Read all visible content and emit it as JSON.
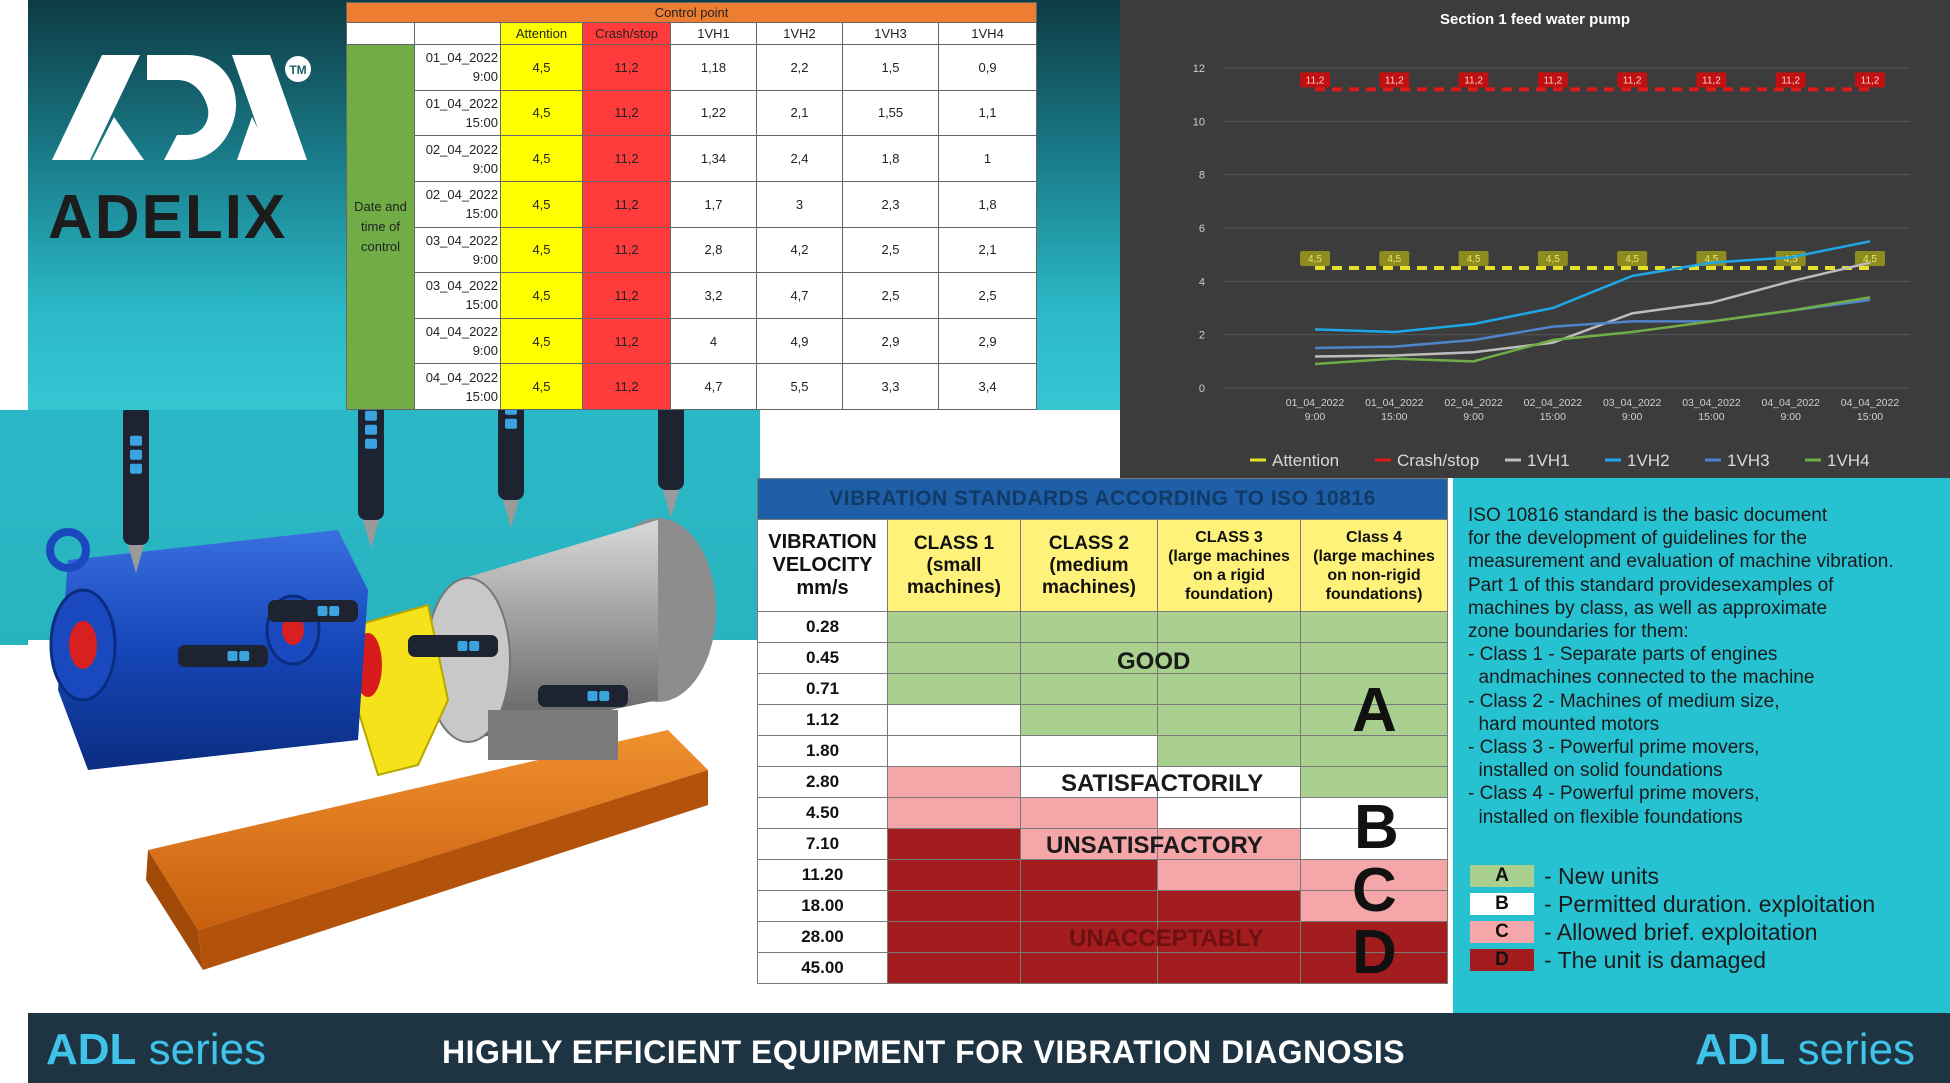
{
  "brand": {
    "name": "ADELIX",
    "logo_mark": "ADL",
    "trademark": "TM",
    "series_bold": "ADL",
    "series_light": "series",
    "tagline": "HIGHLY EFFICIENT EQUIPMENT FOR VIBRATION DIAGNOSIS"
  },
  "control_table": {
    "title": "Control point",
    "headers": [
      "Attention",
      "Crash/stop",
      "1VH1",
      "1VH2",
      "1VH3",
      "1VH4"
    ],
    "row_group_label": [
      "Date and",
      "time of",
      "control"
    ],
    "rows": [
      {
        "date": "01_04_2022",
        "time": "9:00",
        "attention": "4,5",
        "crash": "11,2",
        "vh1": "1,18",
        "vh2": "2,2",
        "vh3": "1,5",
        "vh4": "0,9"
      },
      {
        "date": "01_04_2022",
        "time": "15:00",
        "attention": "4,5",
        "crash": "11,2",
        "vh1": "1,22",
        "vh2": "2,1",
        "vh3": "1,55",
        "vh4": "1,1"
      },
      {
        "date": "02_04_2022",
        "time": "9:00",
        "attention": "4,5",
        "crash": "11,2",
        "vh1": "1,34",
        "vh2": "2,4",
        "vh3": "1,8",
        "vh4": "1"
      },
      {
        "date": "02_04_2022",
        "time": "15:00",
        "attention": "4,5",
        "crash": "11,2",
        "vh1": "1,7",
        "vh2": "3",
        "vh3": "2,3",
        "vh4": "1,8"
      },
      {
        "date": "03_04_2022",
        "time": "9:00",
        "attention": "4,5",
        "crash": "11,2",
        "vh1": "2,8",
        "vh2": "4,2",
        "vh3": "2,5",
        "vh4": "2,1"
      },
      {
        "date": "03_04_2022",
        "time": "15:00",
        "attention": "4,5",
        "crash": "11,2",
        "vh1": "3,2",
        "vh2": "4,7",
        "vh3": "2,5",
        "vh4": "2,5"
      },
      {
        "date": "04_04_2022",
        "time": "9:00",
        "attention": "4,5",
        "crash": "11,2",
        "vh1": "4",
        "vh2": "4,9",
        "vh3": "2,9",
        "vh4": "2,9"
      },
      {
        "date": "04_04_2022",
        "time": "15:00",
        "attention": "4,5",
        "crash": "11,2",
        "vh1": "4,7",
        "vh2": "5,5",
        "vh3": "3,3",
        "vh4": "3,4"
      }
    ]
  },
  "chart_data": {
    "type": "line",
    "title": "Section 1 feed water pump",
    "categories": [
      [
        "01_04_2022",
        "9:00"
      ],
      [
        "01_04_2022",
        "15:00"
      ],
      [
        "02_04_2022",
        "9:00"
      ],
      [
        "02_04_2022",
        "15:00"
      ],
      [
        "03_04_2022",
        "9:00"
      ],
      [
        "03_04_2022",
        "15:00"
      ],
      [
        "04_04_2022",
        "9:00"
      ],
      [
        "04_04_2022",
        "15:00"
      ]
    ],
    "ylim": [
      0,
      12
    ],
    "yticks": [
      0,
      2,
      4,
      6,
      8,
      10,
      12
    ],
    "grid": true,
    "legend_position": "bottom",
    "series": [
      {
        "name": "Attention",
        "color": "#e6e02a",
        "dashed": true,
        "labels": true,
        "label_text": "4,5",
        "values": [
          4.5,
          4.5,
          4.5,
          4.5,
          4.5,
          4.5,
          4.5,
          4.5
        ]
      },
      {
        "name": "Crash/stop",
        "color": "#e01818",
        "dashed": true,
        "labels": true,
        "label_text": "11,2",
        "values": [
          11.2,
          11.2,
          11.2,
          11.2,
          11.2,
          11.2,
          11.2,
          11.2
        ]
      },
      {
        "name": "1VH1",
        "color": "#bdbdbd",
        "values": [
          1.18,
          1.22,
          1.34,
          1.7,
          2.8,
          3.2,
          4.0,
          4.7
        ]
      },
      {
        "name": "1VH2",
        "color": "#1ea7e8",
        "values": [
          2.2,
          2.1,
          2.4,
          3.0,
          4.2,
          4.7,
          4.9,
          5.5
        ]
      },
      {
        "name": "1VH3",
        "color": "#4f83cc",
        "values": [
          1.5,
          1.55,
          1.8,
          2.3,
          2.5,
          2.5,
          2.9,
          3.3
        ]
      },
      {
        "name": "1VH4",
        "color": "#70ad47",
        "values": [
          0.9,
          1.1,
          1.0,
          1.8,
          2.1,
          2.5,
          2.9,
          3.4
        ]
      }
    ]
  },
  "iso_table": {
    "title": "VIBRATION STANDARDS ACCORDING TO ISO 10816",
    "velocity_header": [
      "VIBRATION",
      "VELOCITY",
      "mm/s"
    ],
    "class_headers": [
      [
        "CLASS 1",
        "(small",
        "machines)"
      ],
      [
        "CLASS 2",
        "(medium",
        "machines)"
      ],
      [
        "CLASS 3",
        "(large machines",
        "on a rigid",
        "foundation)"
      ],
      [
        "Class 4",
        "(large machines",
        "on non-rigid",
        "foundations)"
      ]
    ],
    "velocities": [
      "0.28",
      "0.45",
      "0.71",
      "1.12",
      "1.80",
      "2.80",
      "4.50",
      "7.10",
      "11.20",
      "18.00",
      "28.00",
      "45.00"
    ],
    "zones": [
      [
        "g",
        "g",
        "g",
        "g"
      ],
      [
        "g",
        "g",
        "g",
        "g"
      ],
      [
        "g",
        "g",
        "g",
        "g"
      ],
      [
        "w",
        "g",
        "g",
        "g"
      ],
      [
        "w",
        "w",
        "g",
        "g"
      ],
      [
        "p",
        "w",
        "w",
        "g"
      ],
      [
        "p",
        "p",
        "w",
        "w"
      ],
      [
        "r",
        "p",
        "p",
        "w"
      ],
      [
        "r",
        "r",
        "p",
        "p"
      ],
      [
        "r",
        "r",
        "r",
        "p"
      ],
      [
        "r",
        "r",
        "r",
        "r"
      ],
      [
        "r",
        "r",
        "r",
        "r"
      ]
    ],
    "zone_words": {
      "good": "GOOD",
      "satisfactory": "SATISFACTORILY",
      "unsatisfactory": "UNSATISFACTORY",
      "unacceptable": "UNACCEPTABLY"
    },
    "zone_letters": [
      "A",
      "B",
      "C",
      "D"
    ]
  },
  "description": {
    "lines": [
      "ISO 10816 standard is the basic document",
      "for the development of guidelines for the",
      "measurement and evaluation of machine vibration.",
      "Part 1 of this standard providesexamples of",
      "machines by class, as well as approximate",
      "zone boundaries for them:",
      "- Class 1 - Separate parts of engines",
      "  andmachines connected to the machine",
      "- Class 2 - Machines of medium size,",
      "  hard mounted motors",
      "- Class 3 - Powerful prime movers,",
      "  installed on solid foundations",
      "- Class 4 - Powerful prime movers,",
      "  installed on flexible foundations"
    ]
  },
  "zone_legend": [
    {
      "letter": "A",
      "text": "- New units",
      "color": "#a9d08e"
    },
    {
      "letter": "B",
      "text": "- Permitted duration. exploitation",
      "color": "#ffffff"
    },
    {
      "letter": "C",
      "text": "- Allowed brief. exploitation",
      "color": "#f4a6a8"
    },
    {
      "letter": "D",
      "text": "- The unit is damaged",
      "color": "#a31c1e"
    }
  ],
  "sensor_label": "ADL"
}
